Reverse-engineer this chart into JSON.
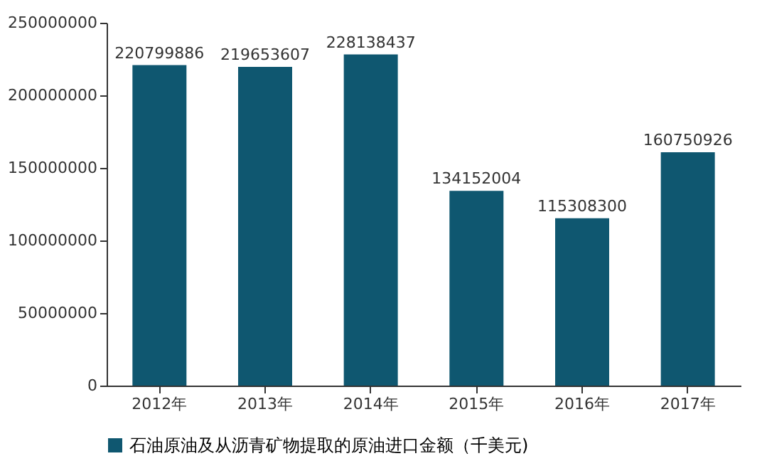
{
  "chart_data": {
    "type": "bar",
    "categories": [
      "2012年",
      "2013年",
      "2014年",
      "2015年",
      "2016年",
      "2017年"
    ],
    "series": [
      {
        "name": "石油原油及从沥青矿物提取的原油进口金额（千美元)",
        "color": "#0f5770",
        "values": [
          220799886,
          219653607,
          228138437,
          134152004,
          115308300,
          160750926
        ]
      }
    ],
    "ylim": [
      0,
      250000000
    ],
    "yticks": [
      0,
      50000000,
      100000000,
      150000000,
      200000000,
      250000000
    ],
    "data_labels": true,
    "grid": false,
    "legend": "bottom"
  }
}
